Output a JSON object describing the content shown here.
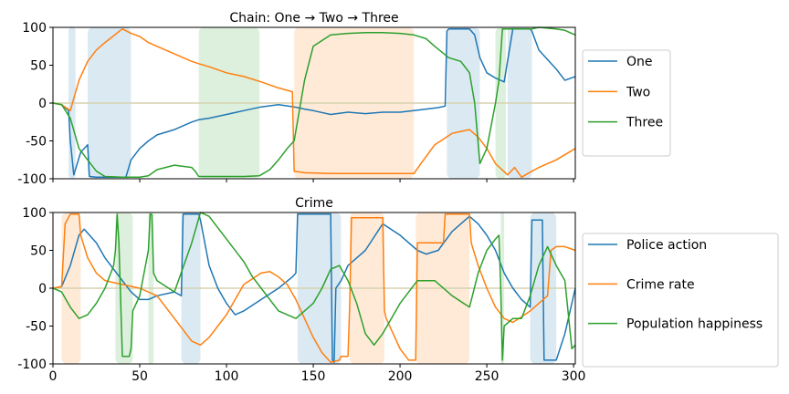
{
  "colors": {
    "blue": "#1f77b4",
    "orange": "#ff7f0e",
    "green": "#2ca02c",
    "baseline": "#d6d2b0"
  },
  "chart_data": [
    {
      "type": "line",
      "title": "Chain: One → Two → Three",
      "xlabel": "",
      "ylabel": "",
      "xlim": [
        0,
        301
      ],
      "ylim": [
        -100,
        100
      ],
      "yticks": [
        100,
        50,
        0,
        -50,
        -100
      ],
      "xticks": [
        0,
        50,
        100,
        150,
        200,
        250,
        300
      ],
      "show_xtick_labels": false,
      "grid": false,
      "legend_position": "right",
      "baseline": 0,
      "shaded_regions": [
        {
          "start": 9,
          "end": 13,
          "series": "One"
        },
        {
          "start": 20,
          "end": 45,
          "series": "One"
        },
        {
          "start": 84,
          "end": 119,
          "series": "Three"
        },
        {
          "start": 139,
          "end": 208,
          "series": "Two"
        },
        {
          "start": 227,
          "end": 246,
          "series": "One"
        },
        {
          "start": 255,
          "end": 261,
          "series": "Three"
        },
        {
          "start": 262,
          "end": 276,
          "series": "One"
        }
      ],
      "series": [
        {
          "name": "One",
          "color_key": "blue",
          "x": [
            0,
            5,
            9,
            10,
            12,
            16,
            20,
            21,
            25,
            42,
            45,
            50,
            55,
            60,
            70,
            80,
            84,
            90,
            100,
            110,
            120,
            130,
            139,
            145,
            150,
            160,
            170,
            180,
            190,
            200,
            208,
            215,
            222,
            226,
            227,
            228,
            240,
            243,
            246,
            250,
            255,
            260,
            263,
            265,
            275,
            276,
            280,
            290,
            295,
            301
          ],
          "y": [
            0,
            -2,
            -10,
            -50,
            -95,
            -65,
            -55,
            -97,
            -98,
            -98,
            -75,
            -60,
            -50,
            -42,
            -35,
            -25,
            -22,
            -20,
            -15,
            -10,
            -5,
            -2,
            -5,
            -8,
            -10,
            -15,
            -12,
            -14,
            -12,
            -12,
            -10,
            -8,
            -6,
            -4,
            95,
            98,
            98,
            90,
            60,
            40,
            33,
            28,
            70,
            98,
            98,
            95,
            70,
            45,
            30,
            35
          ]
        },
        {
          "name": "Two",
          "color_key": "orange",
          "x": [
            0,
            5,
            10,
            15,
            20,
            25,
            30,
            40,
            45,
            50,
            55,
            60,
            70,
            80,
            84,
            90,
            100,
            110,
            120,
            130,
            138,
            139,
            145,
            160,
            180,
            200,
            208,
            212,
            220,
            230,
            240,
            245,
            250,
            255,
            262,
            266,
            270,
            276,
            280,
            290,
            301
          ],
          "y": [
            0,
            -2,
            -10,
            30,
            55,
            70,
            80,
            98,
            92,
            88,
            80,
            75,
            65,
            55,
            52,
            48,
            40,
            35,
            28,
            20,
            15,
            -90,
            -92,
            -93,
            -93,
            -93,
            -93,
            -80,
            -55,
            -40,
            -35,
            -45,
            -60,
            -80,
            -95,
            -85,
            -98,
            -90,
            -85,
            -75,
            -60
          ]
        },
        {
          "name": "Three",
          "color_key": "green",
          "x": [
            0,
            5,
            10,
            15,
            20,
            25,
            30,
            40,
            45,
            50,
            55,
            60,
            70,
            80,
            82,
            84,
            90,
            100,
            110,
            119,
            125,
            130,
            135,
            139,
            145,
            150,
            160,
            170,
            180,
            190,
            200,
            208,
            215,
            220,
            228,
            235,
            240,
            243,
            246,
            250,
            255,
            257,
            259,
            261,
            265,
            270,
            276,
            280,
            290,
            295,
            301
          ],
          "y": [
            0,
            -2,
            -20,
            -60,
            -75,
            -90,
            -97,
            -98,
            -98,
            -98,
            -96,
            -88,
            -82,
            -85,
            -90,
            -97,
            -97,
            -97,
            -97,
            -96,
            -88,
            -75,
            -60,
            -50,
            30,
            75,
            90,
            92,
            93,
            93,
            92,
            90,
            85,
            75,
            60,
            55,
            40,
            0,
            -80,
            -60,
            0,
            30,
            98,
            98,
            98,
            98,
            98,
            100,
            98,
            96,
            90
          ]
        }
      ]
    },
    {
      "type": "line",
      "title": "Crime",
      "xlabel": "",
      "ylabel": "",
      "xlim": [
        0,
        301
      ],
      "ylim": [
        -100,
        100
      ],
      "yticks": [
        100,
        50,
        0,
        -50,
        -100
      ],
      "xticks": [
        0,
        50,
        100,
        150,
        200,
        250,
        300
      ],
      "show_xtick_labels": true,
      "grid": false,
      "legend_position": "right",
      "baseline": 0,
      "shaded_regions": [
        {
          "start": 5,
          "end": 16,
          "series": "Crime rate"
        },
        {
          "start": 36,
          "end": 46,
          "series": "Population happiness"
        },
        {
          "start": 55,
          "end": 58,
          "series": "Population happiness"
        },
        {
          "start": 74,
          "end": 85,
          "series": "Police action"
        },
        {
          "start": 141,
          "end": 166,
          "series": "Police action"
        },
        {
          "start": 171,
          "end": 191,
          "series": "Crime rate"
        },
        {
          "start": 209,
          "end": 240,
          "series": "Crime rate"
        },
        {
          "start": 258,
          "end": 260,
          "series": "Population happiness"
        },
        {
          "start": 275,
          "end": 290,
          "series": "Police action"
        }
      ],
      "series": [
        {
          "name": "Police action",
          "color_key": "blue",
          "x": [
            0,
            5,
            10,
            15,
            18,
            25,
            30,
            40,
            45,
            50,
            55,
            60,
            70,
            74,
            75,
            84,
            85,
            90,
            95,
            100,
            105,
            110,
            120,
            130,
            138,
            140,
            141,
            160,
            161,
            162,
            163,
            166,
            170,
            180,
            190,
            200,
            210,
            215,
            222,
            230,
            240,
            245,
            250,
            255,
            260,
            265,
            270,
            275,
            276,
            282,
            283,
            290,
            295,
            301
          ],
          "y": [
            0,
            2,
            30,
            70,
            78,
            60,
            40,
            10,
            -5,
            -15,
            -15,
            -10,
            -5,
            -10,
            98,
            98,
            90,
            30,
            0,
            -20,
            -35,
            -30,
            -15,
            0,
            15,
            20,
            98,
            98,
            -95,
            -98,
            0,
            10,
            30,
            50,
            85,
            70,
            50,
            45,
            50,
            75,
            95,
            85,
            70,
            50,
            20,
            0,
            -15,
            -25,
            90,
            90,
            -95,
            -95,
            -60,
            0
          ]
        },
        {
          "name": "Crime rate",
          "color_key": "orange",
          "x": [
            0,
            5,
            7,
            10,
            15,
            16,
            20,
            25,
            30,
            40,
            50,
            60,
            70,
            80,
            85,
            90,
            95,
            100,
            105,
            110,
            120,
            125,
            130,
            135,
            140,
            145,
            150,
            155,
            160,
            165,
            166,
            170,
            171,
            172,
            190,
            191,
            192,
            200,
            205,
            209,
            210,
            225,
            226,
            240,
            241,
            245,
            250,
            255,
            260,
            265,
            270,
            275,
            280,
            285,
            287,
            290,
            295,
            301
          ],
          "y": [
            0,
            2,
            85,
            98,
            98,
            70,
            40,
            20,
            10,
            5,
            0,
            -10,
            -40,
            -70,
            -75,
            -65,
            -50,
            -35,
            -15,
            5,
            20,
            22,
            15,
            5,
            -15,
            -40,
            -65,
            -85,
            -98,
            -95,
            -90,
            -90,
            -20,
            93,
            93,
            -30,
            -40,
            -80,
            -95,
            -95,
            60,
            60,
            98,
            98,
            60,
            30,
            0,
            -25,
            -40,
            -45,
            -38,
            -30,
            -20,
            -10,
            50,
            55,
            55,
            50
          ]
        },
        {
          "name": "Population happiness",
          "color_key": "green",
          "x": [
            0,
            5,
            10,
            15,
            20,
            25,
            30,
            35,
            36,
            37,
            38,
            40,
            42,
            44,
            45,
            46,
            50,
            55,
            56,
            57,
            58,
            60,
            70,
            80,
            85,
            90,
            100,
            110,
            115,
            120,
            130,
            135,
            140,
            145,
            150,
            155,
            160,
            165,
            170,
            175,
            180,
            185,
            190,
            200,
            210,
            220,
            230,
            240,
            245,
            250,
            255,
            257,
            258,
            259,
            260,
            265,
            270,
            275,
            280,
            285,
            290,
            295,
            299,
            301
          ],
          "y": [
            0,
            -5,
            -25,
            -40,
            -35,
            -20,
            0,
            30,
            50,
            98,
            60,
            -90,
            -90,
            -90,
            -80,
            -30,
            -10,
            50,
            98,
            97,
            20,
            10,
            -5,
            60,
            100,
            95,
            65,
            35,
            15,
            0,
            -30,
            -35,
            -40,
            -30,
            -20,
            0,
            25,
            30,
            10,
            -20,
            -60,
            -75,
            -60,
            -20,
            10,
            10,
            -10,
            -25,
            20,
            50,
            65,
            70,
            0,
            -95,
            -50,
            -40,
            -40,
            -10,
            30,
            55,
            30,
            10,
            -80,
            -75
          ]
        }
      ]
    }
  ]
}
